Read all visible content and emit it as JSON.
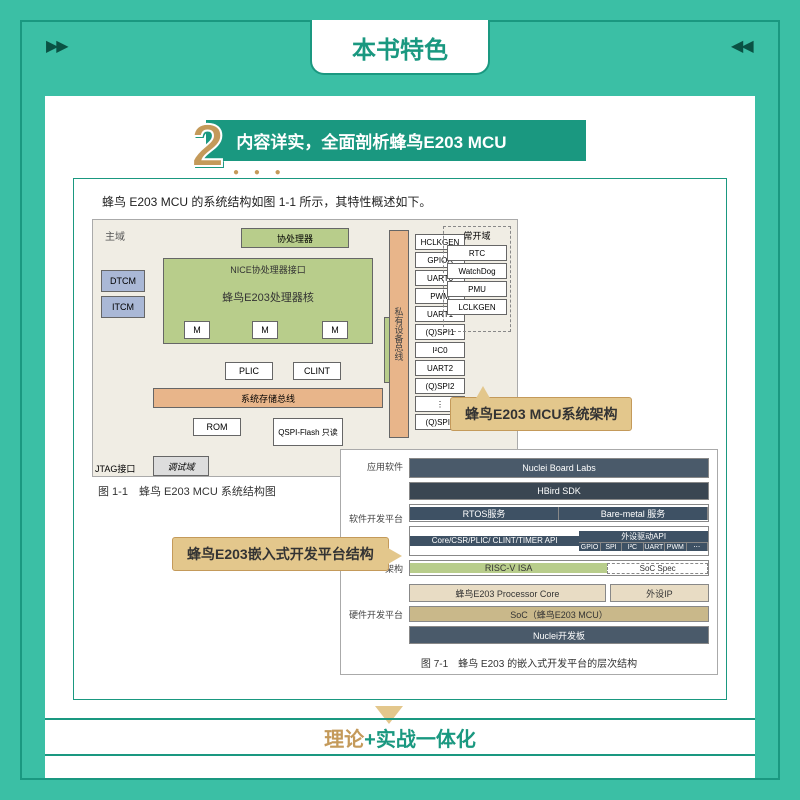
{
  "page_title": "本书特色",
  "feature_number": "2",
  "feature_title": "内容详实，全面剖析蜂鸟E203 MCU",
  "intro_text": "蜂鸟 E203 MCU 的系统结构如图 1-1 所示，其特性概述如下。",
  "diag1": {
    "domain_main": "主域",
    "coprocessor": "协处理器",
    "nice_if": "NICE协处理器接口",
    "core": "蜂鸟E203处理器核",
    "dtcm": "DTCM",
    "itcm": "ITCM",
    "m": "M",
    "vbus": "私有设备总线",
    "plic": "PLIC",
    "clint": "CLINT",
    "sysbus": "系统存储总线",
    "rom": "ROM",
    "qspi": "QSPI-Flash\n只读",
    "jtag": "JTAG接口",
    "debug": "调试域",
    "domain_always": "常开域",
    "peripherals": [
      "HCLKGEN",
      "GPIOA",
      "UART0",
      "PWM",
      "UART1",
      "(Q)SPI1",
      "I²C0",
      "UART2",
      "(Q)SPI2",
      "⋮",
      "(Q)SPI0"
    ],
    "always_on": [
      "RTC",
      "WatchDog",
      "PMU",
      "LCLKGEN"
    ],
    "caption": "图 1-1　蜂鸟 E203 MCU 系统结构图"
  },
  "callout1": "蜂鸟E203 MCU系统架构",
  "callout2": "蜂鸟E203嵌入式开发平台结构",
  "diag2": {
    "left_labels": {
      "app": "应用软件",
      "sdk": "软件开发平台",
      "arch": "架构",
      "hw": "硬件开发平台"
    },
    "nuclei": "Nuclei Board Labs",
    "hbird": "HBird SDK",
    "rtos": "RTOS服务",
    "bare": "Bare-metal 服务",
    "core_api": "Core/CSR/PLIC/\nCLINT/TIMER API",
    "periph_api": "外设驱动API",
    "periph_items": [
      "GPIO",
      "SPI",
      "I²C",
      "UART",
      "PWM",
      "⋯"
    ],
    "riscv": "RISC-V ISA",
    "soc_spec": "SoC Spec",
    "proc_core": "蜂鸟E203 Processor Core",
    "ip": "外设IP",
    "soc": "SoC（蜂鸟E203 MCU）",
    "board": "Nuclei开发板",
    "caption": "图 7-1　蜂鸟 E203 的嵌入式开发平台的层次结构"
  },
  "bottom": {
    "part1": "理论",
    "part2": "+实战一体化"
  }
}
